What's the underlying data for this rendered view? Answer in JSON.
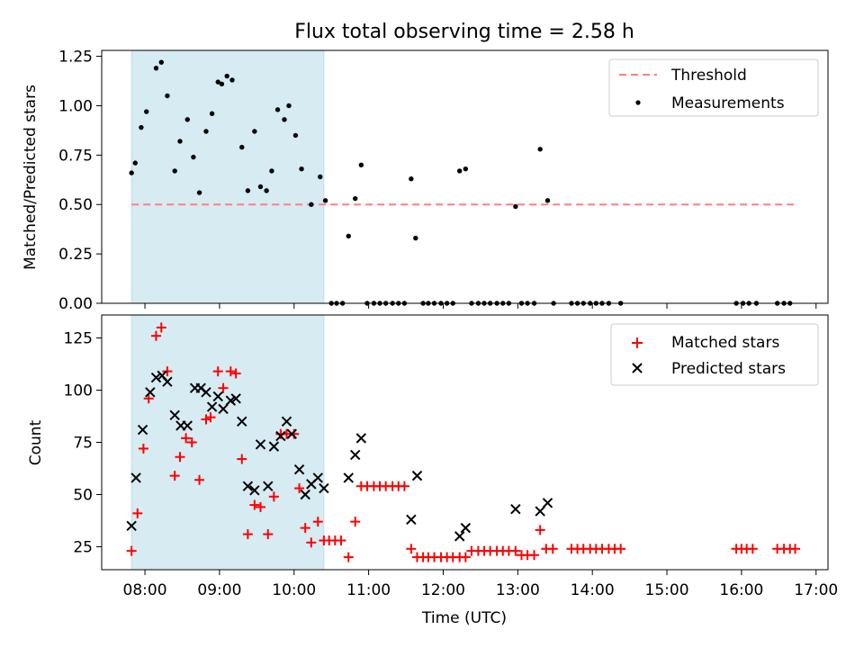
{
  "chart_data": [
    {
      "type": "scatter",
      "title": "Flux total observing time = 2.58 h",
      "xlabel": "",
      "ylabel": "Matched/Predicted stars",
      "xlim": [
        7.42,
        17.16
      ],
      "ylim": [
        0,
        1.28
      ],
      "yticks": [
        0,
        0.25,
        0.5,
        0.75,
        1.0,
        1.25
      ],
      "ytick_labels": [
        "0.00",
        "0.25",
        "0.50",
        "0.75",
        "1.00",
        "1.25"
      ],
      "shaded_span": [
        7.82,
        10.4
      ],
      "legend": [
        "Threshold",
        "Measurements"
      ],
      "legend_position": "top-right",
      "threshold": {
        "name": "Threshold",
        "value": 0.5,
        "x_range": [
          7.82,
          16.72
        ],
        "color": "#ff7f7f"
      },
      "series": [
        {
          "name": "Measurements",
          "color": "#000000",
          "x": [
            7.82,
            7.87,
            7.95,
            8.02,
            8.15,
            8.22,
            8.3,
            8.4,
            8.47,
            8.57,
            8.65,
            8.73,
            8.82,
            8.9,
            8.98,
            9.03,
            9.1,
            9.17,
            9.3,
            9.38,
            9.47,
            9.55,
            9.63,
            9.7,
            9.78,
            9.87,
            9.93,
            10.02,
            10.1,
            10.23,
            10.35,
            10.42,
            10.5,
            10.57,
            10.65,
            10.73,
            10.82,
            10.9,
            10.98,
            11.07,
            11.15,
            11.23,
            11.32,
            11.4,
            11.48,
            11.57,
            11.63,
            11.73,
            11.8,
            11.88,
            11.97,
            12.05,
            12.13,
            12.22,
            12.3,
            12.38,
            12.47,
            12.55,
            12.63,
            12.72,
            12.8,
            12.88,
            12.97,
            13.05,
            13.13,
            13.22,
            13.3,
            13.4,
            13.48,
            13.72,
            13.8,
            13.88,
            13.97,
            14.05,
            14.13,
            14.22,
            14.38,
            15.93,
            16.02,
            16.1,
            16.2,
            16.48,
            16.57,
            16.65
          ],
          "y": [
            0.66,
            0.71,
            0.89,
            0.97,
            1.19,
            1.22,
            1.05,
            0.67,
            0.82,
            0.93,
            0.74,
            0.56,
            0.87,
            0.96,
            1.12,
            1.11,
            1.15,
            1.13,
            0.79,
            0.57,
            0.87,
            0.59,
            0.57,
            0.67,
            0.98,
            0.93,
            1.0,
            0.85,
            0.68,
            0.5,
            0.64,
            0.52,
            0.0,
            0.0,
            0.0,
            0.34,
            0.53,
            0.7,
            0.0,
            0.0,
            0.0,
            0.0,
            0.0,
            0.0,
            0.0,
            0.63,
            0.33,
            0.0,
            0.0,
            0.0,
            0.0,
            0.0,
            0.0,
            0.67,
            0.68,
            0.0,
            0.0,
            0.0,
            0.0,
            0.0,
            0.0,
            0.0,
            0.49,
            0.0,
            0.0,
            0.0,
            0.78,
            0.52,
            0.0,
            0.0,
            0.0,
            0.0,
            0.0,
            0.0,
            0.0,
            0.0,
            0.0,
            0.0,
            0.0,
            0.0,
            0.0,
            0.0,
            0.0,
            0.0
          ]
        }
      ]
    },
    {
      "type": "scatter",
      "title": "",
      "xlabel": "Time (UTC)",
      "ylabel": "Count",
      "xlim": [
        7.42,
        17.16
      ],
      "ylim": [
        14,
        136
      ],
      "yticks": [
        25,
        50,
        75,
        100,
        125
      ],
      "ytick_labels": [
        "25",
        "50",
        "75",
        "100",
        "125"
      ],
      "xticks": [
        8,
        9,
        10,
        11,
        12,
        13,
        14,
        15,
        16,
        17
      ],
      "xtick_labels": [
        "08:00",
        "09:00",
        "10:00",
        "11:00",
        "12:00",
        "13:00",
        "14:00",
        "15:00",
        "16:00",
        "17:00"
      ],
      "shaded_span": [
        7.82,
        10.4
      ],
      "legend": [
        "Matched stars",
        "Predicted stars"
      ],
      "legend_position": "top-right",
      "series": [
        {
          "name": "Matched stars",
          "marker": "+",
          "color": "#ff0000",
          "x": [
            7.82,
            7.9,
            7.98,
            8.05,
            8.15,
            8.22,
            8.3,
            8.4,
            8.47,
            8.55,
            8.63,
            8.73,
            8.82,
            8.88,
            8.98,
            9.05,
            9.15,
            9.22,
            9.3,
            9.38,
            9.47,
            9.55,
            9.65,
            9.73,
            9.82,
            9.9,
            10.0,
            10.07,
            10.15,
            10.23,
            10.32,
            10.4,
            10.47,
            10.55,
            10.63,
            10.73,
            10.82,
            10.9,
            10.98,
            11.07,
            11.15,
            11.23,
            11.32,
            11.4,
            11.48,
            11.57,
            11.65,
            11.73,
            11.8,
            11.88,
            11.97,
            12.05,
            12.13,
            12.22,
            12.3,
            12.38,
            12.47,
            12.55,
            12.63,
            12.72,
            12.8,
            12.88,
            12.97,
            13.05,
            13.13,
            13.22,
            13.3,
            13.38,
            13.47,
            13.72,
            13.8,
            13.88,
            13.97,
            14.05,
            14.13,
            14.22,
            14.3,
            14.38,
            15.93,
            16.0,
            16.07,
            16.15,
            16.48,
            16.57,
            16.65,
            16.72
          ],
          "y": [
            23,
            41,
            72,
            96,
            126,
            130,
            109,
            59,
            68,
            77,
            75,
            57,
            86,
            87,
            109,
            101,
            109,
            108,
            67,
            31,
            45,
            44,
            31,
            49,
            79,
            79,
            79,
            53,
            34,
            27,
            37,
            28,
            28,
            28,
            28,
            20,
            37,
            54,
            54,
            54,
            54,
            54,
            54,
            54,
            54,
            24,
            20,
            20,
            20,
            20,
            20,
            20,
            20,
            20,
            20,
            23,
            23,
            23,
            23,
            23,
            23,
            23,
            23,
            21,
            21,
            21,
            33,
            24,
            24,
            24,
            24,
            24,
            24,
            24,
            24,
            24,
            24,
            24,
            24,
            24,
            24,
            24,
            24,
            24,
            24,
            24
          ]
        },
        {
          "name": "Predicted stars",
          "marker": "x",
          "color": "#000000",
          "x": [
            7.82,
            7.88,
            7.97,
            8.07,
            8.15,
            8.23,
            8.3,
            8.4,
            8.48,
            8.57,
            8.67,
            8.75,
            8.82,
            8.9,
            8.98,
            9.05,
            9.15,
            9.22,
            9.3,
            9.38,
            9.47,
            9.55,
            9.65,
            9.73,
            9.82,
            9.9,
            9.97,
            10.07,
            10.15,
            10.23,
            10.32,
            10.4,
            10.73,
            10.82,
            10.9,
            11.57,
            11.65,
            12.22,
            12.3,
            12.97,
            13.3,
            13.4
          ],
          "y": [
            35,
            58,
            81,
            99,
            106,
            107,
            104,
            88,
            83,
            83,
            101,
            101,
            99,
            92,
            97,
            91,
            95,
            96,
            85,
            54,
            52,
            74,
            54,
            73,
            78,
            85,
            79,
            62,
            50,
            55,
            58,
            53,
            58,
            69,
            77,
            38,
            59,
            30,
            34,
            43,
            42,
            46
          ]
        }
      ]
    }
  ]
}
